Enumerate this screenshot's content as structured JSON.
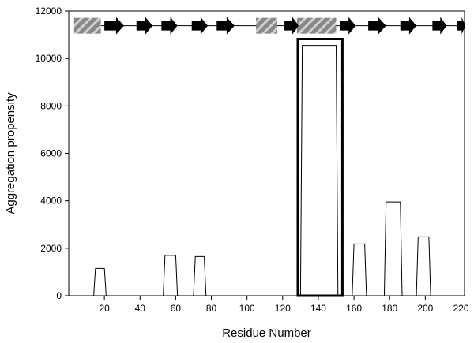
{
  "chart_data": {
    "type": "line",
    "xlabel": "Residue Number",
    "ylabel": "Aggregation propensity",
    "xlim": [
      0,
      222
    ],
    "ylim": [
      0,
      12000
    ],
    "x_ticks": [
      20,
      40,
      60,
      80,
      100,
      120,
      140,
      160,
      180,
      200,
      220
    ],
    "y_ticks": [
      0,
      2000,
      4000,
      6000,
      8000,
      10000,
      12000
    ],
    "series": [
      {
        "x": [
          0,
          14,
          15,
          20,
          21,
          53,
          54,
          60,
          61,
          70,
          71,
          76,
          77,
          130,
          131,
          150,
          151,
          159,
          160,
          166,
          167,
          177,
          178,
          186,
          187,
          195,
          196,
          202,
          203,
          222
        ],
        "y": [
          0,
          0,
          1150,
          1150,
          0,
          0,
          1700,
          1700,
          0,
          0,
          1650,
          1650,
          0,
          0,
          10550,
          10550,
          0,
          0,
          2180,
          2180,
          0,
          0,
          3950,
          3950,
          0,
          0,
          2480,
          2480,
          0,
          0
        ]
      }
    ],
    "highlight_region": {
      "x": [
        128.5,
        153.5
      ],
      "y": [
        0,
        10820
      ]
    },
    "secondary_structure": {
      "y": 11380,
      "line_x": [
        0,
        222
      ],
      "helices": [
        [
          3,
          18
        ],
        [
          105,
          117
        ],
        [
          128,
          150
        ]
      ],
      "strands": [
        [
          20,
          31
        ],
        [
          38,
          47
        ],
        [
          52,
          61
        ],
        [
          69,
          78
        ],
        [
          83,
          93
        ],
        [
          121,
          129
        ],
        [
          152,
          161
        ],
        [
          168,
          178
        ],
        [
          186,
          195
        ],
        [
          204,
          212
        ],
        [
          218,
          227
        ]
      ]
    },
    "colors": {
      "line": "#000000",
      "helix_fill": "#888888",
      "helix_stripe": "#cfcfcf",
      "strand": "#000000"
    }
  }
}
